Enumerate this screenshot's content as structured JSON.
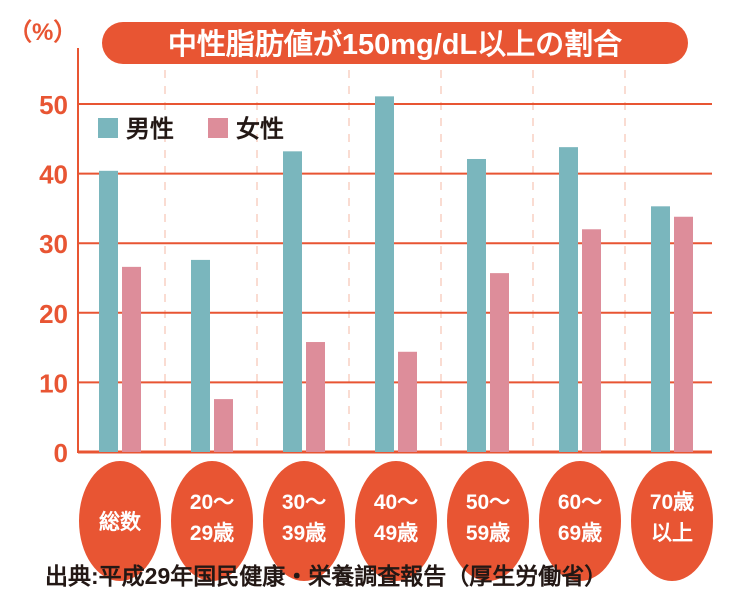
{
  "chart_data": {
    "type": "bar",
    "title": "中性脂肪値が150mg/dL以上の割合",
    "ylabel": "（%）",
    "xlabel": "",
    "ylim": [
      0,
      55
    ],
    "yticks": [
      "0",
      "10",
      "20",
      "30",
      "40",
      "50"
    ],
    "grid": true,
    "legend_position": "top-left",
    "categories": [
      [
        "総数"
      ],
      [
        "20〜",
        "29歳"
      ],
      [
        "30〜",
        "39歳"
      ],
      [
        "40〜",
        "49歳"
      ],
      [
        "50〜",
        "59歳"
      ],
      [
        "60〜",
        "69歳"
      ],
      [
        "70歳",
        "以上"
      ]
    ],
    "series": [
      {
        "name": "男性",
        "color": "#7ab6bd",
        "values": [
          40.4,
          27.6,
          43.2,
          51.1,
          42.1,
          43.8,
          35.3
        ]
      },
      {
        "name": "女性",
        "color": "#dd8d9a",
        "values": [
          26.6,
          7.6,
          15.8,
          14.4,
          25.7,
          32.0,
          33.8
        ]
      }
    ],
    "source": "出典:平成29年国民健康・栄養調査報告（厚生労働省）"
  },
  "colors": {
    "accent": "#e85533",
    "male": "#7ab6bd",
    "female": "#dd8d9a"
  }
}
